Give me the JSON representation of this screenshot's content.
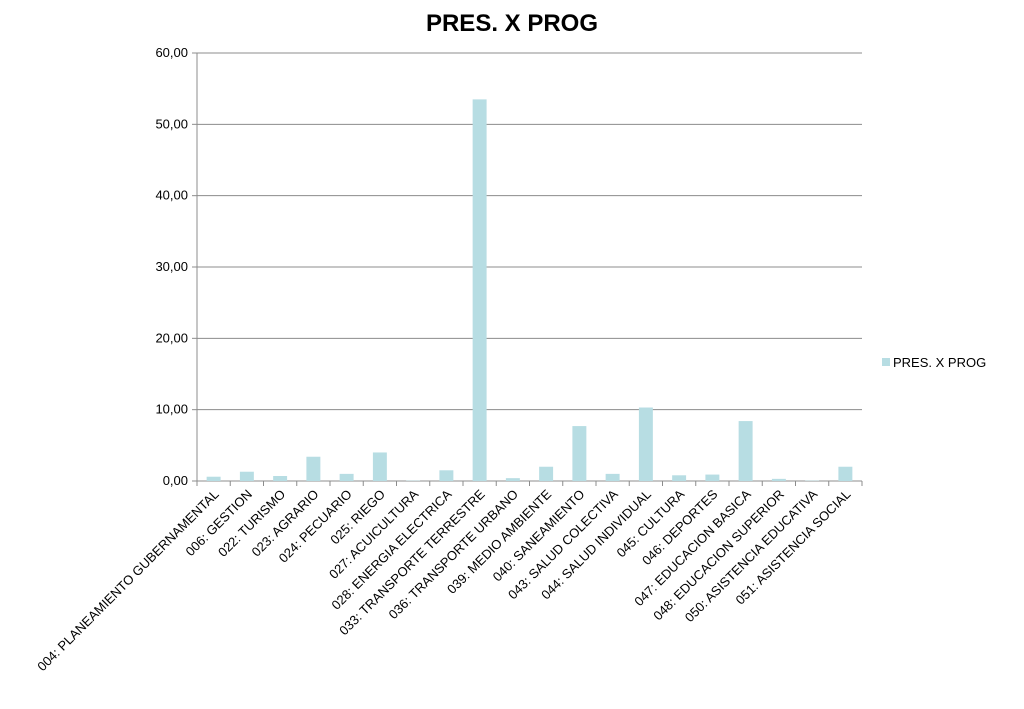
{
  "chart_data": {
    "type": "bar",
    "title": "PRES. X PROG",
    "xlabel": "",
    "ylabel": "",
    "ylim": [
      0,
      60
    ],
    "yticks": [
      "0,00",
      "10,00",
      "20,00",
      "30,00",
      "40,00",
      "50,00",
      "60,00"
    ],
    "grid": true,
    "legend_position": "right",
    "bar_color": "#b7dde3",
    "categories": [
      "004: PLANEAMIENTO GUBERNAMENTAL",
      "006: GESTION",
      "022: TURISMO",
      "023: AGRARIO",
      "024: PECUARIO",
      "025: RIEGO",
      "027: ACUICULTURA",
      "028: ENERGIA ELECTRICA",
      "033: TRANSPORTE TERRESTRE",
      "036: TRANSPORTE URBANO",
      "039: MEDIO AMBIENTE",
      "040: SANEAMIENTO",
      "043: SALUD COLECTIVA",
      "044: SALUD INDIVIDUAL",
      "045: CULTURA",
      "046: DEPORTES",
      "047: EDUCACION BASICA",
      "048: EDUCACION SUPERIOR",
      "050: ASISTENCIA EDUCATIVA",
      "051: ASISTENCIA SOCIAL"
    ],
    "series": [
      {
        "name": "PRES. X PROG",
        "values": [
          0.6,
          1.3,
          0.7,
          3.4,
          1.0,
          4.0,
          0.05,
          1.5,
          53.5,
          0.4,
          2.0,
          7.7,
          1.0,
          10.3,
          0.8,
          0.9,
          8.4,
          0.3,
          0.05,
          2.0
        ]
      }
    ]
  }
}
